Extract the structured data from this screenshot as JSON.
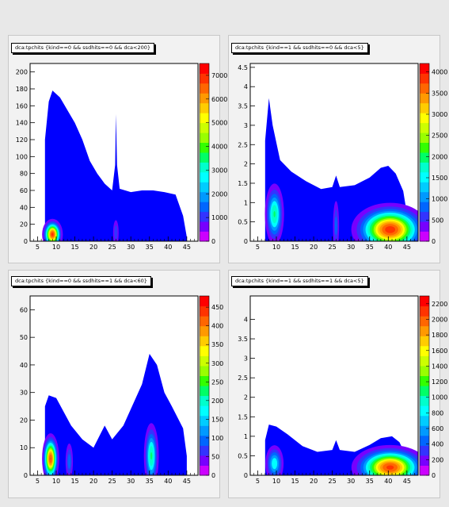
{
  "canvas_title": "",
  "chart_data": [
    {
      "type": "heatmap",
      "title": "dca:tpchits {kind==0 &&  ssdhits==0 && dca<200}",
      "xlim": [
        3,
        48
      ],
      "ylim": [
        0,
        210
      ],
      "xticks": [
        5,
        10,
        15,
        20,
        25,
        30,
        35,
        40,
        45
      ],
      "yticks": [
        0,
        20,
        40,
        60,
        80,
        100,
        120,
        140,
        160,
        180,
        200
      ],
      "zlim": [
        0,
        7500
      ],
      "zticks": [
        0,
        1000,
        2000,
        3000,
        4000,
        5000,
        6000,
        7000
      ],
      "zticklabels": [
        "0",
        "1000",
        "2000",
        "3000",
        "4000",
        "5000",
        "6000",
        "7000"
      ],
      "grid": false,
      "outline": [
        [
          7,
          0
        ],
        [
          7,
          120
        ],
        [
          8,
          165
        ],
        [
          9,
          178
        ],
        [
          11,
          170
        ],
        [
          13,
          155
        ],
        [
          15,
          140
        ],
        [
          17,
          120
        ],
        [
          19,
          95
        ],
        [
          21,
          80
        ],
        [
          23,
          68
        ],
        [
          25,
          60
        ],
        [
          25.8,
          90
        ],
        [
          26,
          150
        ],
        [
          26.3,
          90
        ],
        [
          27,
          62
        ],
        [
          30,
          58
        ],
        [
          33,
          60
        ],
        [
          36,
          60
        ],
        [
          39,
          58
        ],
        [
          42,
          55
        ],
        [
          44,
          30
        ],
        [
          45,
          5
        ],
        [
          45,
          0
        ]
      ],
      "peaks": [
        {
          "x": 9,
          "y": 8,
          "z": 7200,
          "sx": 1.2,
          "sy": 8
        },
        {
          "x": 26,
          "y": 10,
          "z": 1500,
          "sx": 0.5,
          "sy": 10
        }
      ]
    },
    {
      "type": "heatmap",
      "title": "dca:tpchits {kind==1   && ssdhits==0 && dca<5}",
      "xlim": [
        3,
        48
      ],
      "ylim": [
        0,
        4.6
      ],
      "xticks": [
        5,
        10,
        15,
        20,
        25,
        30,
        35,
        40,
        45
      ],
      "yticks": [
        0,
        0.5,
        1,
        1.5,
        2,
        2.5,
        3,
        3.5,
        4,
        4.5
      ],
      "zlim": [
        0,
        4200
      ],
      "zticks": [
        0,
        500,
        1000,
        1500,
        2000,
        2500,
        3000,
        3500,
        4000
      ],
      "zticklabels": [
        "0",
        "500",
        "1000",
        "1500",
        "2000",
        "2500",
        "3000",
        "3500",
        "4000"
      ],
      "grid": false,
      "outline": [
        [
          7,
          0
        ],
        [
          7,
          2.6
        ],
        [
          8,
          3.7
        ],
        [
          9,
          3.0
        ],
        [
          11,
          2.1
        ],
        [
          14,
          1.8
        ],
        [
          18,
          1.55
        ],
        [
          22,
          1.35
        ],
        [
          25,
          1.4
        ],
        [
          26,
          1.7
        ],
        [
          27,
          1.4
        ],
        [
          31,
          1.45
        ],
        [
          35,
          1.65
        ],
        [
          38,
          1.9
        ],
        [
          40,
          1.95
        ],
        [
          42,
          1.75
        ],
        [
          44,
          1.3
        ],
        [
          45,
          0.7
        ],
        [
          45,
          0
        ]
      ],
      "peaks": [
        {
          "x": 9.5,
          "y": 0.7,
          "z": 2000,
          "sx": 1.3,
          "sy": 0.4
        },
        {
          "x": 40.5,
          "y": 0.3,
          "z": 4100,
          "sx": 4.5,
          "sy": 0.3
        },
        {
          "x": 26,
          "y": 0.4,
          "z": 1000,
          "sx": 0.5,
          "sy": 0.4
        }
      ]
    },
    {
      "type": "heatmap",
      "title": "dca:tpchits {kind==0  && ssdhits==1 && dca<60}",
      "xlim": [
        3,
        48
      ],
      "ylim": [
        0,
        65
      ],
      "xticks": [
        5,
        10,
        15,
        20,
        25,
        30,
        35,
        40,
        45
      ],
      "yticks": [
        0,
        10,
        20,
        30,
        40,
        50,
        60
      ],
      "zlim": [
        0,
        480
      ],
      "zticks": [
        0,
        50,
        100,
        150,
        200,
        250,
        300,
        350,
        400,
        450
      ],
      "zticklabels": [
        "0",
        "50",
        "100",
        "150",
        "200",
        "250",
        "300",
        "350",
        "400",
        "450"
      ],
      "grid": false,
      "outline": [
        [
          7,
          0
        ],
        [
          7,
          25
        ],
        [
          8,
          29
        ],
        [
          10,
          28
        ],
        [
          12,
          23
        ],
        [
          14,
          18
        ],
        [
          17,
          13
        ],
        [
          20,
          10
        ],
        [
          23,
          18
        ],
        [
          25,
          13
        ],
        [
          28,
          18
        ],
        [
          31,
          27
        ],
        [
          33,
          33
        ],
        [
          35,
          44
        ],
        [
          37,
          40
        ],
        [
          39,
          30
        ],
        [
          41,
          25
        ],
        [
          44,
          17
        ],
        [
          45,
          7
        ],
        [
          45,
          0
        ]
      ],
      "peaks": [
        {
          "x": 8.5,
          "y": 6,
          "z": 450,
          "sx": 1.0,
          "sy": 4
        },
        {
          "x": 35.5,
          "y": 7,
          "z": 230,
          "sx": 1.0,
          "sy": 6
        },
        {
          "x": 13.5,
          "y": 5,
          "z": 120,
          "sx": 0.6,
          "sy": 4
        }
      ]
    },
    {
      "type": "heatmap",
      "title": "dca:tpchits {kind==1   && ssdhits==1 && dca<5}",
      "xlim": [
        3,
        48
      ],
      "ylim": [
        0,
        4.6
      ],
      "xticks": [
        5,
        10,
        15,
        20,
        25,
        30,
        35,
        40,
        45
      ],
      "yticks": [
        0,
        0.5,
        1,
        1.5,
        2,
        2.5,
        3,
        3.5,
        4
      ],
      "zlim": [
        0,
        2300
      ],
      "zticks": [
        0,
        200,
        400,
        600,
        800,
        1000,
        1200,
        1400,
        1600,
        1800,
        2000,
        2200
      ],
      "zticklabels": [
        "0",
        "200",
        "400",
        "600",
        "800",
        "1000",
        "1200",
        "1400",
        "1600",
        "1800",
        "2000",
        "2200"
      ],
      "grid": false,
      "outline": [
        [
          7,
          0
        ],
        [
          7,
          0.9
        ],
        [
          8,
          1.3
        ],
        [
          10,
          1.25
        ],
        [
          13,
          1.05
        ],
        [
          17,
          0.75
        ],
        [
          21,
          0.6
        ],
        [
          25,
          0.65
        ],
        [
          26,
          0.9
        ],
        [
          27,
          0.65
        ],
        [
          31,
          0.6
        ],
        [
          35,
          0.78
        ],
        [
          38,
          0.95
        ],
        [
          41,
          1.0
        ],
        [
          43,
          0.85
        ],
        [
          44.5,
          0.55
        ],
        [
          45,
          0
        ]
      ],
      "peaks": [
        {
          "x": 9.5,
          "y": 0.3,
          "z": 900,
          "sx": 1.3,
          "sy": 0.25
        },
        {
          "x": 40.5,
          "y": 0.2,
          "z": 2200,
          "sx": 4.5,
          "sy": 0.25
        }
      ]
    }
  ],
  "palette": [
    "#cc00ff",
    "#7700ff",
    "#3333ff",
    "#0066ff",
    "#0099ff",
    "#00ccff",
    "#00ffff",
    "#00ffcc",
    "#00ff66",
    "#33ff00",
    "#99ff00",
    "#ccff00",
    "#ffff00",
    "#ffcc00",
    "#ff9900",
    "#ff6600",
    "#ff3300",
    "#ff0000"
  ],
  "fill_base": "#0000ff"
}
